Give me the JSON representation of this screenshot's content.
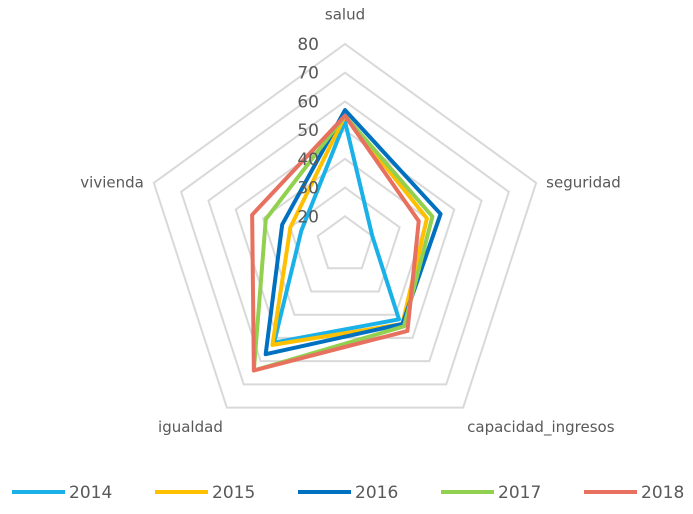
{
  "chart_data": {
    "type": "radar",
    "categories": [
      "salud",
      "seguridad",
      "capacidad_ingresos",
      "igualdad",
      "vivienda"
    ],
    "series": [
      {
        "name": "2014",
        "color": "#1ab0e8",
        "values": [
          53,
          20,
          42,
          52,
          26
        ]
      },
      {
        "name": "2015",
        "color": "#ffc000",
        "values": [
          55,
          40,
          44,
          53,
          30
        ]
      },
      {
        "name": "2016",
        "color": "#0070c0",
        "values": [
          57,
          45,
          44,
          57,
          33
        ]
      },
      {
        "name": "2017",
        "color": "#92d050",
        "values": [
          55,
          42,
          45,
          64,
          39
        ]
      },
      {
        "name": "2018",
        "color": "#e8705f",
        "values": [
          55,
          37,
          47,
          64,
          44
        ]
      }
    ],
    "rlim": [
      10,
      80
    ],
    "rticks": [
      20,
      30,
      40,
      50,
      60,
      70,
      80
    ],
    "grid": true,
    "legend": "bottom"
  }
}
